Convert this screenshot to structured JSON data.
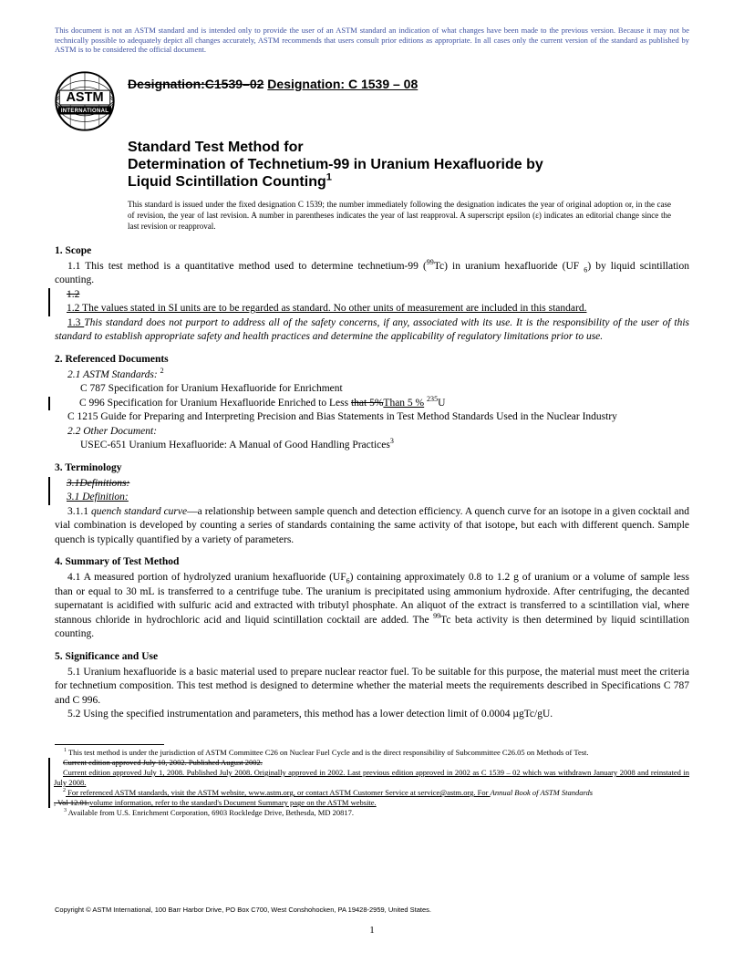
{
  "disclaimer": "This document is not an ASTM standard and is intended only to provide the user of an ASTM standard an indication of what changes have been made to the previous version. Because it may not be technically possible to adequately depict all changes accurately, ASTM recommends that users consult prior editions as appropriate. In all cases only the current version of the standard as published by ASTM is to be considered the official document.",
  "logo": {
    "top_text": "ASTM",
    "bottom_text": "INTERNATIONAL"
  },
  "designation": {
    "old": "Designation:C1539–02",
    "new": "Designation: C 1539 – 08"
  },
  "title": {
    "line1": "Standard Test Method for",
    "line2": "Determination of Technetium-99 in Uranium Hexafluoride by",
    "line3": "Liquid Scintillation Counting"
  },
  "issuance": "This standard is issued under the fixed designation C 1539; the number immediately following the designation indicates the year of original adoption or, in the case of revision, the year of last revision. A number in parentheses indicates the year of last reapproval. A superscript epsilon (ε) indicates an editorial change since the last revision or reapproval.",
  "s1": {
    "head": "1. Scope",
    "p1a": "1.1 This test method is a quantitative method used to determine technetium-99 (",
    "p1b": "Tc) in uranium hexafluoride (UF ",
    "p1c": ") by liquid scintillation counting.",
    "p2strike": "1.2",
    "p2": "1.2  The values stated in SI units are to be regarded as standard. No other units of measurement are included in this standard.",
    "p3": "1.3  This standard does not purport to address all of the safety concerns, if any, associated with its use. It is the responsibility of the user of this standard to establish appropriate safety and health practices and determine the applicability of regulatory limitations prior to use."
  },
  "s2": {
    "head": "2. Referenced Documents",
    "p1": "2.1 ASTM Standards:",
    "c787": "C 787  Specification for Uranium Hexafluoride for Enrichment",
    "c996a": "C 996  Specification for Uranium Hexafluoride Enriched to Less ",
    "c996old": "that 5%",
    "c996new": "Than 5 %",
    "c996b": "U",
    "c1215": "C 1215  Guide for Preparing and Interpreting Precision and Bias Statements in Test Method Standards Used in the Nuclear Industry",
    "p2": "2.2  Other Document:",
    "usec": "USEC-651   Uranium Hexafluoride: A Manual of Good Handling Practices"
  },
  "s3": {
    "head": "3. Terminology",
    "old": "3.1Definitions:",
    "new": "3.1  Definition:",
    "p1": "3.1.1  quench standard curve—a relationship between sample quench and detection efficiency. A quench curve for an isotope in a given cocktail and vial combination is developed by counting a series of standards containing the same activity of that isotope, but each with different quench. Sample quench is typically quantified by a variety of parameters."
  },
  "s4": {
    "head": "4. Summary of Test Method",
    "p1a": "4.1 A measured portion of hydrolyzed uranium hexafluoride (UF",
    "p1b": ") containing approximately 0.8 to 1.2 g of uranium or a volume of sample less than or equal to 30 mL is transferred to a centrifuge tube. The uranium is precipitated using ammonium hydroxide. After centrifuging, the decanted supernatant is acidified with sulfuric acid and extracted with tributyl phosphate. An aliquot of the extract is transferred to a scintillation vial, where stannous chloride in hydrochloric acid and liquid scintillation cocktail are added. The ",
    "p1c": "Tc beta activity is then determined by liquid scintillation counting."
  },
  "s5": {
    "head": "5. Significance and Use",
    "p1": "5.1 Uranium hexafluoride is a basic material used to prepare nuclear reactor fuel. To be suitable for this purpose, the material must meet the criteria for technetium composition. This test method is designed to determine whether the material meets the requirements described in Specifications C 787 and C 996.",
    "p2": "5.2 Using the specified instrumentation and parameters, this method has a lower detection limit of 0.0004 µgTc/gU."
  },
  "footnotes": {
    "f1": " This test method is under the jurisdiction of ASTM Committee C26 on Nuclear Fuel Cycle and is the direct responsibility of Subcommittee C26.05 on Methods of Test.",
    "f1old": "Current edition approved July 10, 2002. Published August 2002.",
    "f1new": "Current edition approved July 1, 2008. Published July 2008. Originally approved in 2002. Last previous edition approved in 2002 as C 1539 – 02 which was withdrawn January 2008 and reinstated in July 2008.",
    "f2a": " For referenced ASTM standards, visit the ASTM website, www.astm.org, or contact ASTM Customer Service at service@astm.org. For ",
    "f2i": "Annual Book of ASTM Standards",
    "f2old": ", Vol 12.01.",
    "f2new": "volume information, refer to the standard's Document Summary page on the ASTM website.",
    "f3": " Available from U.S. Enrichment Corporation, 6903 Rockledge Drive, Bethesda, MD 20817."
  },
  "copyright": "Copyright © ASTM International, 100 Barr Harbor Drive, PO Box C700, West Conshohocken, PA 19428-2959, United States.",
  "pagenum": "1"
}
